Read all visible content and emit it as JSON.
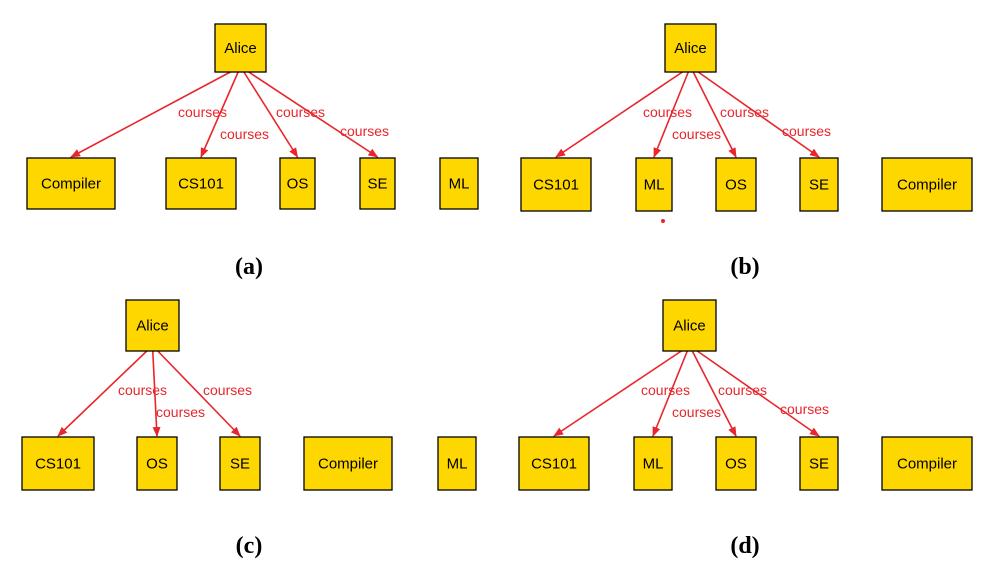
{
  "colors": {
    "node_fill": "#FFD700",
    "node_stroke": "#000000",
    "edge": "#E8262C",
    "label": "#E8262C"
  },
  "panels": [
    {
      "caption": "(a)",
      "root": "Alice",
      "children": [
        "Compiler",
        "CS101",
        "OS",
        "SE",
        "ML"
      ],
      "edges": [
        {
          "to": "Compiler",
          "label": "courses"
        },
        {
          "to": "CS101",
          "label": "courses"
        },
        {
          "to": "OS",
          "label": "courses"
        },
        {
          "to": "SE",
          "label": "courses"
        }
      ]
    },
    {
      "caption": "(b)",
      "root": "Alice",
      "children": [
        "CS101",
        "ML",
        "OS",
        "SE",
        "Compiler"
      ],
      "edges": [
        {
          "to": "CS101",
          "label": "courses"
        },
        {
          "to": "ML",
          "label": "courses"
        },
        {
          "to": "OS",
          "label": "courses"
        },
        {
          "to": "SE",
          "label": "courses"
        }
      ]
    },
    {
      "caption": "(c)",
      "root": "Alice",
      "children": [
        "CS101",
        "OS",
        "SE",
        "Compiler",
        "ML"
      ],
      "edges": [
        {
          "to": "CS101",
          "label": "courses"
        },
        {
          "to": "OS",
          "label": "courses"
        },
        {
          "to": "SE",
          "label": "courses"
        }
      ]
    },
    {
      "caption": "(d)",
      "root": "Alice",
      "children": [
        "CS101",
        "ML",
        "OS",
        "SE",
        "Compiler"
      ],
      "edges": [
        {
          "to": "CS101",
          "label": "courses"
        },
        {
          "to": "ML",
          "label": "courses"
        },
        {
          "to": "OS",
          "label": "courses"
        },
        {
          "to": "SE",
          "label": "courses"
        }
      ]
    }
  ]
}
